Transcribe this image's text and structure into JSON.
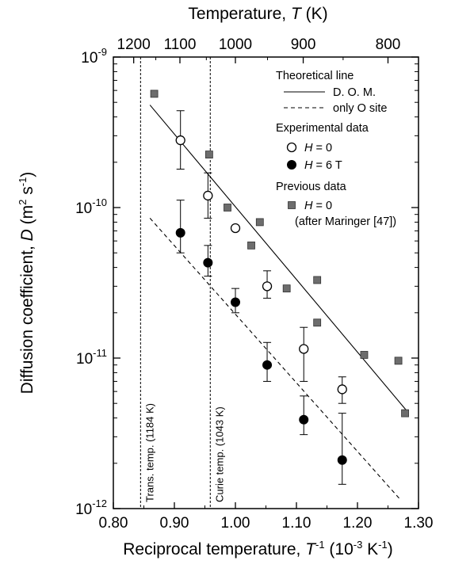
{
  "chart_data": {
    "type": "scatter",
    "x_axis": {
      "label_main": "Reciprocal temperature, ",
      "label_var": "T",
      "label_sup": "-1",
      "label_unit": " (10",
      "label_unit_sup": "-3",
      "label_unit_end": " K",
      "label_unit_end_sup": "-1",
      "label_close": ")",
      "range": [
        0.8,
        1.3
      ],
      "ticks": [
        0.8,
        0.9,
        1.0,
        1.1,
        1.2,
        1.3
      ],
      "tick_labels": [
        "0.80",
        "0.90",
        "1.00",
        "1.10",
        "1.20",
        "1.30"
      ]
    },
    "top_axis": {
      "label_main": "Temperature, ",
      "label_var": "T",
      "label_unit": " (K)",
      "ticks": [
        1200,
        1100,
        1000,
        900,
        800
      ],
      "tick_labels": [
        "1200",
        "1100",
        "1000",
        "900",
        "800"
      ]
    },
    "y_axis": {
      "label_main": "Diffusion coefficient, ",
      "label_var": "D",
      "label_unit": " (m",
      "label_unit_sup": "2",
      "label_unit_mid": " s",
      "label_unit_sup2": "-1",
      "label_close": ")",
      "scale": "log",
      "range": [
        1e-12,
        1e-09
      ],
      "ticks": [
        {
          "value": 1e-12,
          "base": "10",
          "exp": "-12"
        },
        {
          "value": 1e-11,
          "base": "10",
          "exp": "-11"
        },
        {
          "value": 1e-10,
          "base": "10",
          "exp": "-10"
        },
        {
          "value": 1e-09,
          "base": "10",
          "exp": "-9"
        }
      ]
    },
    "vertical_lines": [
      {
        "x": 0.8446,
        "label": "Trans. temp. (1184 K)"
      },
      {
        "x": 0.9588,
        "label": "Curie temp. (1043 K)"
      }
    ],
    "lines": [
      {
        "name": "D. O. M.",
        "style": "solid",
        "x": [
          0.86,
          1.28
        ],
        "y": [
          4.8e-10,
          4.5e-12
        ]
      },
      {
        "name": "only O site",
        "style": "dashed",
        "x": [
          0.86,
          1.27
        ],
        "y": [
          8.5e-11,
          1.15e-12
        ]
      }
    ],
    "series": [
      {
        "name": "H = 0",
        "marker": "open-circle",
        "x": [
          0.91,
          0.955,
          1.0,
          1.052,
          1.112,
          1.175
        ],
        "y": [
          2.8e-10,
          1.2e-10,
          7.3e-11,
          3e-11,
          1.15e-11,
          6.2e-12
        ],
        "err_low": [
          1.8e-10,
          8.5e-11,
          null,
          2.5e-11,
          7e-12,
          5e-12
        ],
        "err_high": [
          4.4e-10,
          1.7e-10,
          null,
          3.8e-11,
          1.6e-11,
          7.5e-12
        ]
      },
      {
        "name": "H = 6 T",
        "marker": "filled-circle",
        "x": [
          0.91,
          0.955,
          1.0,
          1.052,
          1.112,
          1.175
        ],
        "y": [
          6.8e-11,
          4.3e-11,
          2.35e-11,
          9e-12,
          3.9e-12,
          2.1e-12
        ],
        "err_low": [
          5e-11,
          3.5e-11,
          2e-11,
          7e-12,
          3.1e-12,
          1.45e-12
        ],
        "err_high": [
          1.12e-10,
          5.6e-11,
          2.9e-11,
          1.27e-11,
          5.6e-12,
          4.3e-12
        ]
      },
      {
        "name": "H = 0 (after Maringer [47])",
        "marker": "filled-square",
        "x": [
          0.867,
          0.957,
          0.987,
          1.026,
          1.04,
          1.084,
          1.134,
          1.134,
          1.211,
          1.267,
          1.278
        ],
        "y": [
          5.7e-10,
          2.25e-10,
          1e-10,
          5.6e-11,
          8e-11,
          2.9e-11,
          3.3e-11,
          1.72e-11,
          1.05e-11,
          9.6e-12,
          4.3e-12
        ]
      }
    ],
    "legend": {
      "placement": "top-right",
      "theoretical_title": "Theoretical line",
      "dom_label": "D. O. M.",
      "osite_label": "only O site",
      "experimental_title": "Experimental data",
      "h0_var": "H",
      "h0_rest": " = 0",
      "h6_var": "H",
      "h6_rest": " = 6 T",
      "previous_title": "Previous data",
      "prev_var": "H",
      "prev_rest": " = 0",
      "prev_note": "(after Maringer [47])"
    },
    "grid": false
  }
}
